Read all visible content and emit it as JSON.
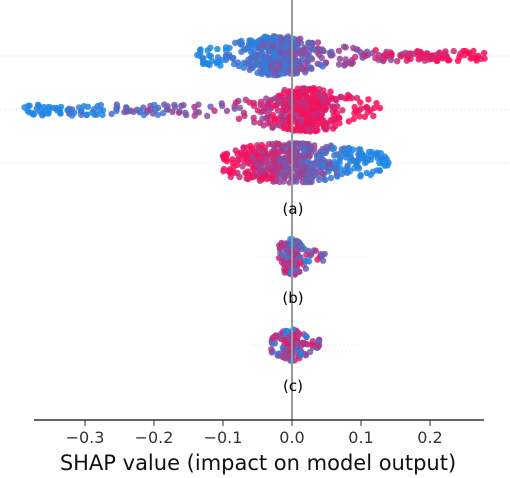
{
  "chart_data": {
    "type": "scatter",
    "subtype": "shap-beeswarm",
    "title": "",
    "xlabel": "SHAP value (impact on model output)",
    "ylabel": "",
    "xlim": [
      -0.375,
      0.28
    ],
    "xticks": [
      -0.3,
      -0.2,
      -0.1,
      0.0,
      0.1,
      0.2
    ],
    "xtick_labels": [
      "−0.3",
      "−0.2",
      "−0.1",
      "0.0",
      "0.1",
      "0.2"
    ],
    "grid": false,
    "legend": "none",
    "colors": {
      "low": "#1e88e5",
      "high": "#ff0d57",
      "zero_line": "#999999",
      "row_guide": "#dddddd"
    },
    "panels": [
      {
        "label": "(a)",
        "rows": [
          {
            "x_min": -0.14,
            "x_max": 0.28,
            "color_trend": "low values negative, high values positive"
          },
          {
            "x_min": -0.39,
            "x_max": 0.13,
            "color_trend": "low values negative, high values positive"
          },
          {
            "x_min": -0.1,
            "x_max": 0.14,
            "color_trend": "high values negative, low values positive"
          }
        ]
      },
      {
        "label": "(b)",
        "rows": [
          {
            "x_min": -0.02,
            "x_max": 0.05,
            "color_trend": "mixed"
          }
        ]
      },
      {
        "label": "(c)",
        "rows": [
          {
            "x_min": -0.03,
            "x_max": 0.04,
            "color_trend": "mixed"
          }
        ]
      }
    ]
  }
}
